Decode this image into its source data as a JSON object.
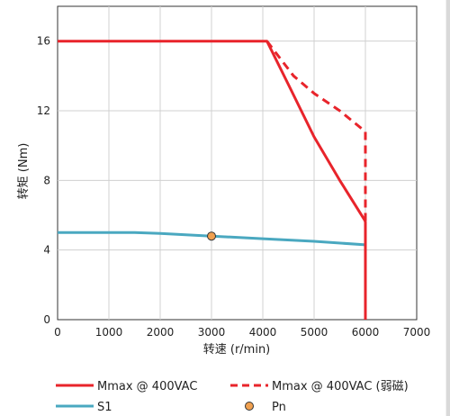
{
  "chart_data": {
    "type": "line",
    "xlabel": "转速 (r/min)",
    "ylabel": "转矩 (Nm)",
    "xlim": [
      0,
      7000
    ],
    "ylim": [
      0,
      18
    ],
    "xticks": [
      0,
      1000,
      2000,
      3000,
      4000,
      5000,
      6000,
      7000
    ],
    "yticks": [
      0,
      4,
      8,
      12,
      16
    ],
    "grid": true,
    "legend_position": "bottom",
    "series": [
      {
        "name": "Mmax @ 400VAC",
        "style": "solid",
        "color": "#e8242b",
        "x": [
          0,
          4080,
          4500,
          5000,
          5500,
          5990,
          6000,
          6000
        ],
        "y": [
          16,
          16,
          13.5,
          10.5,
          8.0,
          5.7,
          5.6,
          0
        ]
      },
      {
        "name": "Mmax @ 400VAC (弱磁)",
        "style": "dashed",
        "color": "#e8242b",
        "x": [
          4080,
          4600,
          5000,
          5500,
          6000,
          6000
        ],
        "y": [
          16,
          14.0,
          13.0,
          12.0,
          10.8,
          0
        ]
      },
      {
        "name": "S1",
        "style": "solid",
        "color": "#4aa8c0",
        "x": [
          0,
          1500,
          2000,
          3000,
          4000,
          5000,
          6000
        ],
        "y": [
          5.0,
          5.0,
          4.95,
          4.8,
          4.65,
          4.5,
          4.3
        ]
      }
    ],
    "points": [
      {
        "name": "Pn",
        "x": 3000,
        "y": 4.8,
        "color": "#f0a050"
      }
    ]
  }
}
